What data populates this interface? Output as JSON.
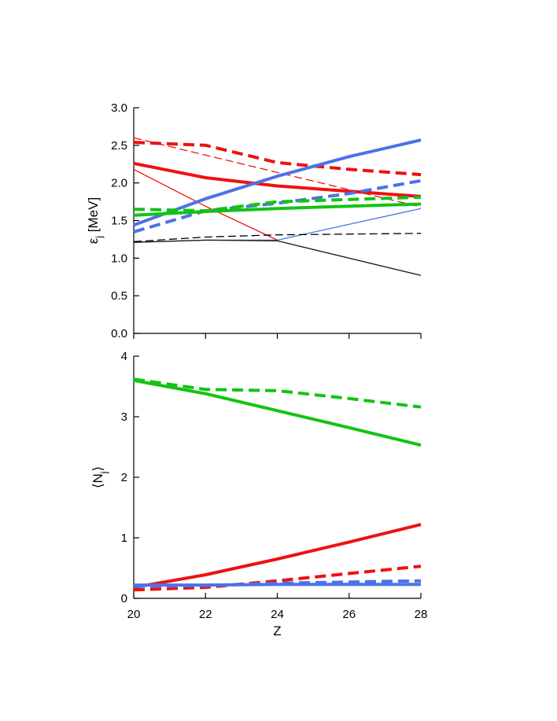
{
  "chart_data": [
    {
      "type": "line",
      "panel": "top",
      "title": "",
      "xlabel": "",
      "ylabel": "εj [MeV]",
      "ylabel_main": "ε",
      "ylabel_sub": "j",
      "ylabel_unit": "[MeV]",
      "xlim": [
        20,
        28
      ],
      "ylim": [
        0,
        3.0
      ],
      "grid": false,
      "x_ticks": [
        20,
        22,
        24,
        26,
        28
      ],
      "y_ticks": [
        0,
        0.5,
        1.0,
        1.5,
        2.0,
        2.5,
        3.0
      ],
      "y_tick_labels": [
        "0.0",
        "0.5",
        "1.0",
        "1.5",
        "2.0",
        "2.5",
        "3.0"
      ],
      "series": [
        {
          "name": "red thick solid",
          "color": "#ee1111",
          "style": "solid",
          "weight": "thick",
          "x": [
            20,
            22,
            24,
            26,
            28
          ],
          "values": [
            2.26,
            2.07,
            1.96,
            1.89,
            1.82
          ]
        },
        {
          "name": "red thick dashed",
          "color": "#ee1111",
          "style": "dashed",
          "weight": "thick",
          "x": [
            20,
            22,
            24,
            26,
            28
          ],
          "values": [
            2.54,
            2.5,
            2.27,
            2.18,
            2.11
          ]
        },
        {
          "name": "red thin solid",
          "color": "#ee1111",
          "style": "solid",
          "weight": "thin",
          "x": [
            20,
            22,
            24
          ],
          "values": [
            2.18,
            1.69,
            1.24
          ]
        },
        {
          "name": "red thin dashed",
          "color": "#ee1111",
          "style": "dashed",
          "weight": "thin",
          "x": [
            20,
            28
          ],
          "values": [
            2.6,
            1.68
          ]
        },
        {
          "name": "blue thick solid",
          "color": "#4a72e8",
          "style": "solid",
          "weight": "thick",
          "x": [
            20,
            22,
            24,
            26,
            28
          ],
          "values": [
            1.44,
            1.79,
            2.09,
            2.35,
            2.57
          ]
        },
        {
          "name": "blue thick dashed",
          "color": "#4a72e8",
          "style": "dashed",
          "weight": "thick",
          "x": [
            20,
            22,
            24,
            26,
            28
          ],
          "values": [
            1.35,
            1.63,
            1.73,
            1.86,
            2.03
          ]
        },
        {
          "name": "blue thin solid",
          "color": "#4a72e8",
          "style": "solid",
          "weight": "thin",
          "x": [
            20,
            22,
            24,
            28
          ],
          "values": [
            1.21,
            1.24,
            1.24,
            1.66
          ]
        },
        {
          "name": "green thick solid",
          "color": "#12c412",
          "style": "solid",
          "weight": "thick",
          "x": [
            20,
            22,
            24,
            26,
            28
          ],
          "values": [
            1.57,
            1.62,
            1.66,
            1.69,
            1.72
          ]
        },
        {
          "name": "green thick dashed",
          "color": "#12c412",
          "style": "dashed",
          "weight": "thick",
          "x": [
            20,
            22,
            24,
            26,
            28
          ],
          "values": [
            1.65,
            1.63,
            1.75,
            1.78,
            1.81
          ]
        },
        {
          "name": "black thin solid",
          "color": "#2a1010",
          "style": "solid",
          "weight": "thin",
          "x": [
            20,
            22,
            24,
            28
          ],
          "values": [
            1.21,
            1.24,
            1.23,
            0.77
          ]
        },
        {
          "name": "black thin dashed",
          "color": "#000000",
          "style": "dashed",
          "weight": "thin",
          "x": [
            20,
            22,
            24,
            26,
            28
          ],
          "values": [
            1.22,
            1.28,
            1.31,
            1.32,
            1.33
          ]
        }
      ]
    },
    {
      "type": "line",
      "panel": "bottom",
      "title": "",
      "xlabel": "Z",
      "ylabel": "⟨Nj⟩",
      "ylabel_main": "N",
      "ylabel_sub": "j",
      "ylabel_open": "⟨",
      "ylabel_close": "⟩",
      "xlim": [
        20,
        28
      ],
      "ylim": [
        0,
        4
      ],
      "grid": false,
      "x_ticks": [
        20,
        22,
        24,
        26,
        28
      ],
      "x_tick_labels": [
        "20",
        "22",
        "24",
        "26",
        "28"
      ],
      "y_ticks": [
        0,
        1,
        2,
        3,
        4
      ],
      "y_tick_labels": [
        "0",
        "1",
        "2",
        "3",
        "4"
      ],
      "series": [
        {
          "name": "green thick solid",
          "color": "#12c412",
          "style": "solid",
          "weight": "thick",
          "x": [
            20,
            22,
            24,
            26,
            28
          ],
          "values": [
            3.6,
            3.38,
            3.1,
            2.82,
            2.53
          ]
        },
        {
          "name": "green thick dashed",
          "color": "#12c412",
          "style": "dashed",
          "weight": "thick",
          "x": [
            20,
            22,
            24,
            26,
            28
          ],
          "values": [
            3.62,
            3.45,
            3.43,
            3.3,
            3.16
          ]
        },
        {
          "name": "red thick solid",
          "color": "#ee1111",
          "style": "solid",
          "weight": "thick",
          "x": [
            20,
            22,
            24,
            26,
            28
          ],
          "values": [
            0.18,
            0.39,
            0.65,
            0.93,
            1.22
          ]
        },
        {
          "name": "red thick dashed",
          "color": "#ee1111",
          "style": "dashed",
          "weight": "thick",
          "x": [
            20,
            22,
            24,
            26,
            28
          ],
          "values": [
            0.14,
            0.18,
            0.29,
            0.41,
            0.53
          ]
        },
        {
          "name": "blue thick solid",
          "color": "#4a72e8",
          "style": "solid",
          "weight": "thick",
          "x": [
            20,
            22,
            24,
            26,
            28
          ],
          "values": [
            0.22,
            0.22,
            0.23,
            0.23,
            0.23
          ]
        },
        {
          "name": "blue thick dashed",
          "color": "#4a72e8",
          "style": "dashed",
          "weight": "thick",
          "x": [
            20,
            22,
            24,
            26,
            28
          ],
          "values": [
            0.2,
            0.21,
            0.25,
            0.27,
            0.29
          ]
        }
      ]
    }
  ]
}
